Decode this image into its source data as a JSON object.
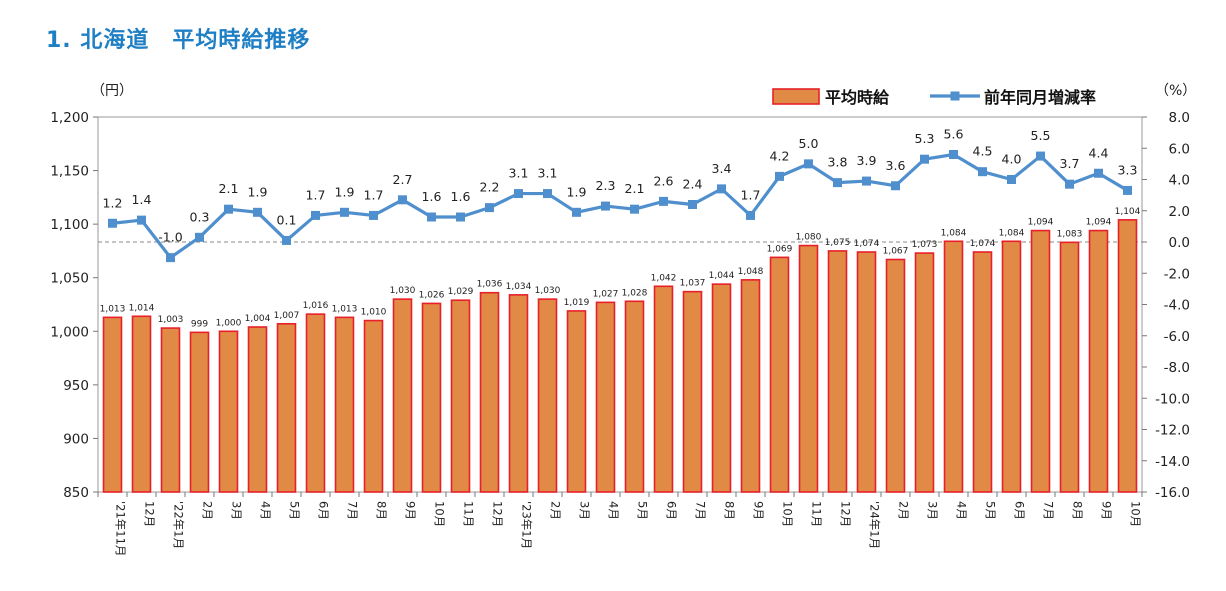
{
  "page_title": "1. 北海道　平均時給推移",
  "chart_data": {
    "type": "bar+line",
    "title": "1. 北海道　平均時給推移",
    "left_axis": {
      "unit": "（円）",
      "range": [
        850,
        1200
      ],
      "ticks": [
        850,
        900,
        950,
        1000,
        1050,
        1100,
        1150,
        1200
      ],
      "tick_labels": [
        "850",
        "900",
        "950",
        "1,000",
        "1,050",
        "1,100",
        "1,150",
        "1,200"
      ]
    },
    "right_axis": {
      "unit": "（%）",
      "range": [
        -16,
        8
      ],
      "ticks": [
        -16,
        -14,
        -12,
        -10,
        -8,
        -6,
        -4,
        -2,
        0,
        2,
        4,
        6,
        8
      ],
      "tick_labels": [
        "-16.0",
        "-14.0",
        "-12.0",
        "-10.0",
        "-8.0",
        "-6.0",
        "-4.0",
        "-2.0",
        "0.0",
        "2.0",
        "4.0",
        "6.0",
        "8.0"
      ]
    },
    "categories": [
      "'21年11月",
      "12月",
      "'22年1月",
      "2月",
      "3月",
      "4月",
      "5月",
      "6月",
      "7月",
      "8月",
      "9月",
      "10月",
      "11月",
      "12月",
      "'23年1月",
      "2月",
      "3月",
      "4月",
      "5月",
      "6月",
      "7月",
      "8月",
      "9月",
      "10月",
      "11月",
      "12月",
      "'24年1月",
      "2月",
      "3月",
      "4月",
      "5月",
      "6月",
      "7月",
      "8月",
      "9月",
      "10月"
    ],
    "series": [
      {
        "name": "平均時給",
        "type": "bar",
        "axis": "left",
        "color": "#e08a45",
        "edge": "#e8202a",
        "values": [
          1013,
          1014,
          1003,
          999,
          1000,
          1004,
          1007,
          1016,
          1013,
          1010,
          1030,
          1026,
          1029,
          1036,
          1034,
          1030,
          1019,
          1027,
          1028,
          1042,
          1037,
          1044,
          1048,
          1069,
          1080,
          1075,
          1074,
          1067,
          1073,
          1084,
          1074,
          1084,
          1094,
          1083,
          1094,
          1104
        ],
        "labels": [
          "1,013",
          "1,014",
          "1,003",
          "999",
          "1,000",
          "1,004",
          "1,007",
          "1,016",
          "1,013",
          "1,010",
          "1,030",
          "1,026",
          "1,029",
          "1,036",
          "1,034",
          "1,030",
          "1,019",
          "1,027",
          "1,028",
          "1,042",
          "1,037",
          "1,044",
          "1,048",
          "1,069",
          "1,080",
          "1,075",
          "1,074",
          "1,067",
          "1,073",
          "1,084",
          "1,074",
          "1,084",
          "1,094",
          "1,083",
          "1,094",
          "1,104"
        ]
      },
      {
        "name": "前年同月増減率",
        "type": "line",
        "axis": "right",
        "color": "#4f8fcd",
        "values": [
          1.2,
          1.4,
          -1.0,
          0.3,
          2.1,
          1.9,
          0.1,
          1.7,
          1.9,
          1.7,
          2.7,
          1.6,
          1.6,
          2.2,
          3.1,
          3.1,
          1.9,
          2.3,
          2.1,
          2.6,
          2.4,
          3.4,
          1.7,
          4.2,
          5.0,
          3.8,
          3.9,
          3.6,
          5.3,
          5.6,
          4.5,
          4.0,
          5.5,
          3.7,
          4.4,
          3.3
        ],
        "labels": [
          "1.2",
          "1.4",
          "-1.0",
          "0.3",
          "2.1",
          "1.9",
          "0.1",
          "1.7",
          "1.9",
          "1.7",
          "2.7",
          "1.6",
          "1.6",
          "2.2",
          "3.1",
          "3.1",
          "1.9",
          "2.3",
          "2.1",
          "2.6",
          "2.4",
          "3.4",
          "1.7",
          "4.2",
          "5.0",
          "3.8",
          "3.9",
          "3.6",
          "5.3",
          "5.6",
          "4.5",
          "4.0",
          "5.5",
          "3.7",
          "4.4",
          "3.3"
        ]
      }
    ],
    "legend": {
      "position": "top-right",
      "items": [
        "平均時給",
        "前年同月増減率"
      ]
    },
    "reference_line": {
      "axis": "right",
      "value": 0,
      "style": "dashed"
    }
  }
}
